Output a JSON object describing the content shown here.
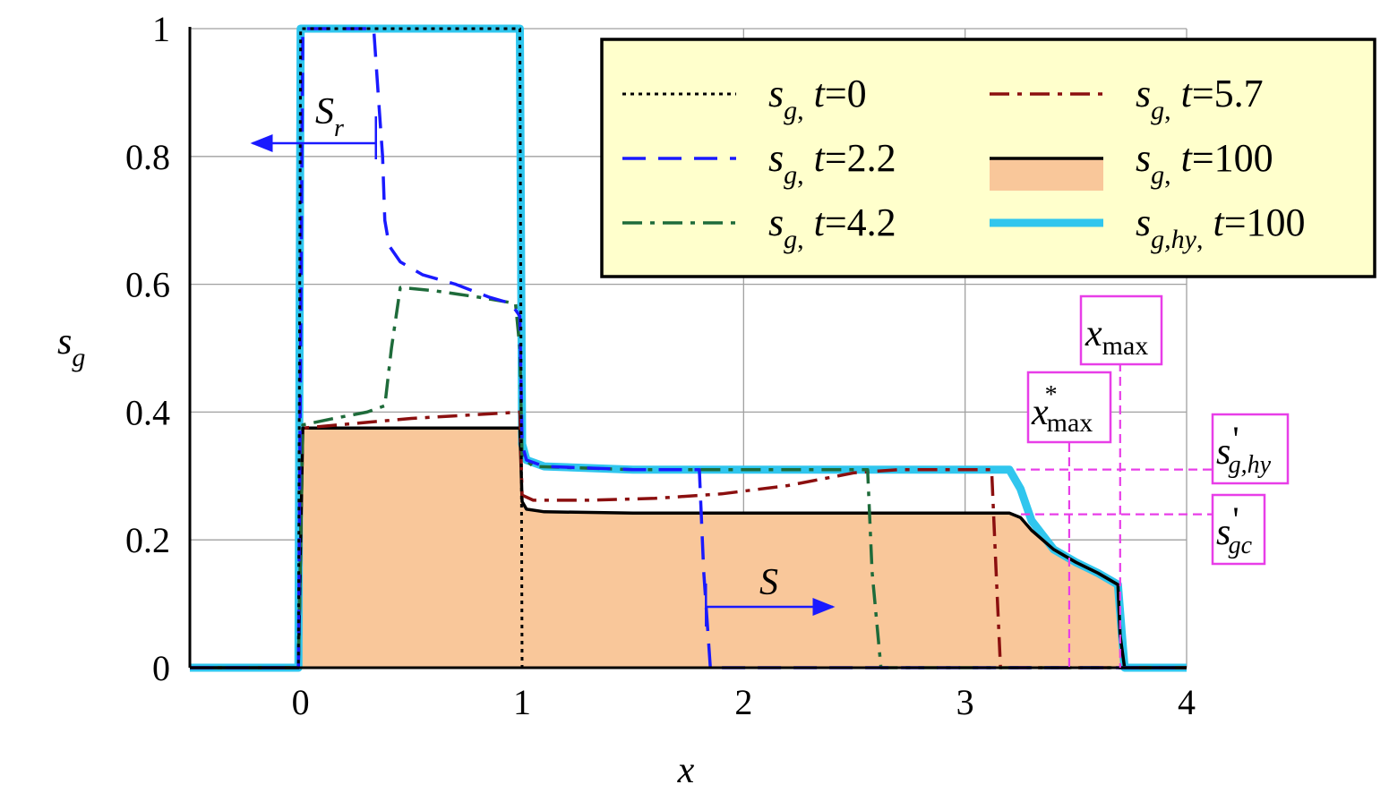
{
  "chart_data": {
    "type": "line",
    "title": "",
    "xlabel": "x",
    "ylabel_base": "s",
    "ylabel_sub": "g",
    "xlim": [
      -0.5,
      4
    ],
    "ylim": [
      0,
      1
    ],
    "xticks": [
      0,
      1,
      2,
      3,
      4
    ],
    "yticks": [
      0,
      0.2,
      0.4,
      0.6,
      0.8,
      1
    ],
    "xtick_labels": [
      "0",
      "1",
      "2",
      "3",
      "4"
    ],
    "ytick_labels": [
      "0",
      "0.2",
      "0.4",
      "0.6",
      "0.8",
      "1"
    ],
    "grid": true,
    "legend_position": "top-right",
    "series": [
      {
        "name": "t=0",
        "base": "s",
        "sub": "g",
        "time_label": "t",
        "time_value": "=0",
        "color": "#000000",
        "style": "dotted",
        "x": [
          -0.5,
          -0.01,
          0.0,
          0.99,
          1.0,
          4.0
        ],
        "y": [
          0,
          0,
          1,
          1,
          0,
          0
        ]
      },
      {
        "name": "t=2.2",
        "base": "s",
        "sub": "g",
        "time_label": "t",
        "time_value": "=2.2",
        "color": "#1a1aff",
        "style": "dashed",
        "x": [
          -0.5,
          -0.01,
          0.01,
          0.33,
          0.35,
          0.37,
          0.38,
          0.4,
          0.45,
          0.55,
          0.7,
          0.85,
          0.95,
          0.99,
          1.0,
          1.02,
          1.1,
          1.5,
          1.8,
          1.82,
          1.85,
          4.0
        ],
        "y": [
          0,
          0,
          1,
          1,
          0.9,
          0.8,
          0.7,
          0.66,
          0.635,
          0.615,
          0.6,
          0.58,
          0.57,
          0.55,
          0.35,
          0.325,
          0.315,
          0.31,
          0.31,
          0.15,
          0,
          0
        ]
      },
      {
        "name": "t=4.2",
        "base": "s",
        "sub": "g",
        "time_label": "t",
        "time_value": "=4.2",
        "color": "#1e6b3a",
        "style": "dashdot",
        "x": [
          -0.5,
          -0.01,
          0.01,
          0.15,
          0.3,
          0.38,
          0.41,
          0.45,
          0.6,
          0.8,
          0.97,
          0.99,
          1.0,
          1.05,
          1.5,
          2.0,
          2.56,
          2.58,
          2.62,
          4.0
        ],
        "y": [
          0,
          0,
          0.38,
          0.39,
          0.4,
          0.41,
          0.5,
          0.595,
          0.59,
          0.58,
          0.57,
          0.5,
          0.33,
          0.315,
          0.31,
          0.31,
          0.31,
          0.15,
          0,
          0
        ]
      },
      {
        "name": "t=5.7",
        "base": "s",
        "sub": "g",
        "time_label": "t",
        "time_value": "=5.7",
        "color": "#8b0f0f",
        "style": "dashdot",
        "x": [
          -0.5,
          -0.01,
          0.01,
          0.5,
          0.99,
          1.0,
          1.05,
          1.3,
          1.6,
          1.9,
          2.2,
          2.5,
          2.7,
          3.0,
          3.12,
          3.14,
          3.16,
          4.0
        ],
        "y": [
          0,
          0,
          0.375,
          0.39,
          0.4,
          0.27,
          0.262,
          0.262,
          0.265,
          0.272,
          0.285,
          0.305,
          0.31,
          0.31,
          0.31,
          0.15,
          0,
          0
        ]
      },
      {
        "name": "t=100",
        "base": "s",
        "sub": "g",
        "time_label": "t",
        "time_value": "=100",
        "color": "#000000",
        "style": "solid",
        "fill": "#f9c79a",
        "x": [
          -0.5,
          -0.01,
          0.01,
          0.99,
          1.0,
          1.02,
          1.1,
          1.5,
          2.0,
          3.0,
          3.2,
          3.25,
          3.3,
          3.4,
          3.5,
          3.6,
          3.69,
          3.7,
          3.72,
          4.0
        ],
        "y": [
          0,
          0,
          0.375,
          0.375,
          0.26,
          0.248,
          0.244,
          0.242,
          0.242,
          0.242,
          0.242,
          0.235,
          0.215,
          0.185,
          0.165,
          0.148,
          0.13,
          0.05,
          0,
          0
        ]
      },
      {
        "name": "t=100 (hy)",
        "base": "s",
        "sub": "g,hy",
        "time_label": "t",
        "time_value": "=100",
        "color": "#30c6ee",
        "style": "thick",
        "x": [
          -0.5,
          -0.01,
          0.0,
          0.99,
          1.0,
          1.02,
          1.1,
          1.5,
          2.0,
          3.0,
          3.2,
          3.25,
          3.3,
          3.4,
          3.5,
          3.6,
          3.69,
          3.72,
          4.0
        ],
        "y": [
          0,
          0,
          1,
          1,
          0.35,
          0.325,
          0.315,
          0.31,
          0.31,
          0.31,
          0.31,
          0.28,
          0.23,
          0.185,
          0.165,
          0.148,
          0.13,
          0,
          0
        ]
      }
    ],
    "annotations": {
      "Sr": {
        "base": "S",
        "sub": "r"
      },
      "S": {
        "base": "S"
      },
      "x_max": {
        "base": "x",
        "sub": "max",
        "x": 3.7
      },
      "x_max_star": {
        "base": "x",
        "sup": "*",
        "sub": "max",
        "x": 3.47
      },
      "s_g_hy_prime": {
        "base": "s",
        "sup": "'",
        "sub": "g,hy",
        "y": 0.31
      },
      "s_gc_prime": {
        "base": "s",
        "sup": "'",
        "sub": "gc",
        "y": 0.24
      }
    },
    "colors": {
      "legend_bg": "#ffffcc",
      "annotation_box": "#e83ee8",
      "arrow": "#1a1aff"
    }
  }
}
